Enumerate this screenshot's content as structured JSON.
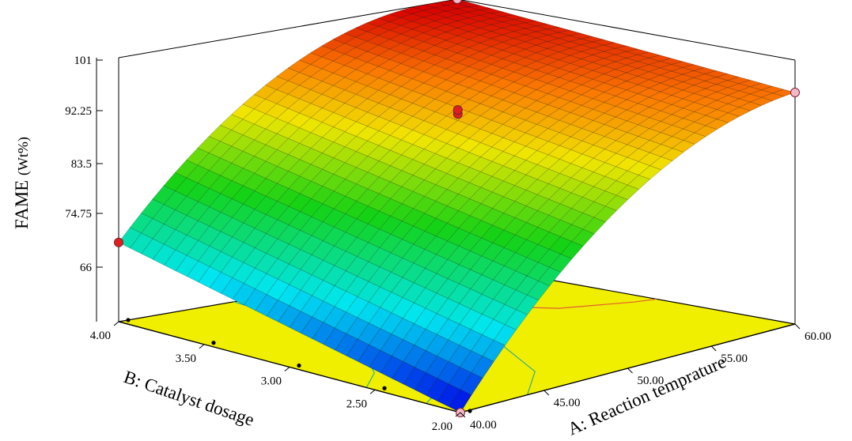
{
  "chart_data": {
    "type": "surface3d",
    "zlabel": "FAME",
    "zlabel_unit": "(Wt%)",
    "xlabel": "A: Reaction temprature",
    "ylabel": "B: Catalyst dosage",
    "x_ticks": [
      "40.00",
      "45.00",
      "50.00",
      "55.00",
      "60.00"
    ],
    "y_ticks": [
      "2.00",
      "2.50",
      "3.00",
      "3.50",
      "4.00"
    ],
    "z_ticks": [
      "66",
      "74.75",
      "83.5",
      "92.25",
      "101"
    ],
    "xlim": [
      40,
      60
    ],
    "ylim": [
      2,
      4
    ],
    "zlim": [
      66,
      101
    ],
    "corner_values": [
      {
        "x": 40,
        "y": 2,
        "z": 66
      },
      {
        "x": 40,
        "y": 4,
        "z": 76.5
      },
      {
        "x": 60,
        "y": 2,
        "z": 96.7
      },
      {
        "x": 60,
        "y": 4,
        "z": 101
      }
    ],
    "design_points": [
      {
        "x": 40,
        "y": 4,
        "z": 76.5,
        "color": "#e02020"
      },
      {
        "x": 50,
        "y": 3,
        "z": 94.7,
        "color": "#e02020"
      },
      {
        "x": 60,
        "y": 2,
        "z": 96.7,
        "color": "#f4b8c8"
      },
      {
        "x": 60,
        "y": 4,
        "z": 101,
        "color": "#f4b8c8"
      },
      {
        "x": 40,
        "y": 2,
        "z": 66,
        "color": "#f4b8c8"
      }
    ],
    "floor_color": "#f0ef00",
    "colormap": "rainbow (blue-cyan-green-yellow-orange-red)"
  }
}
